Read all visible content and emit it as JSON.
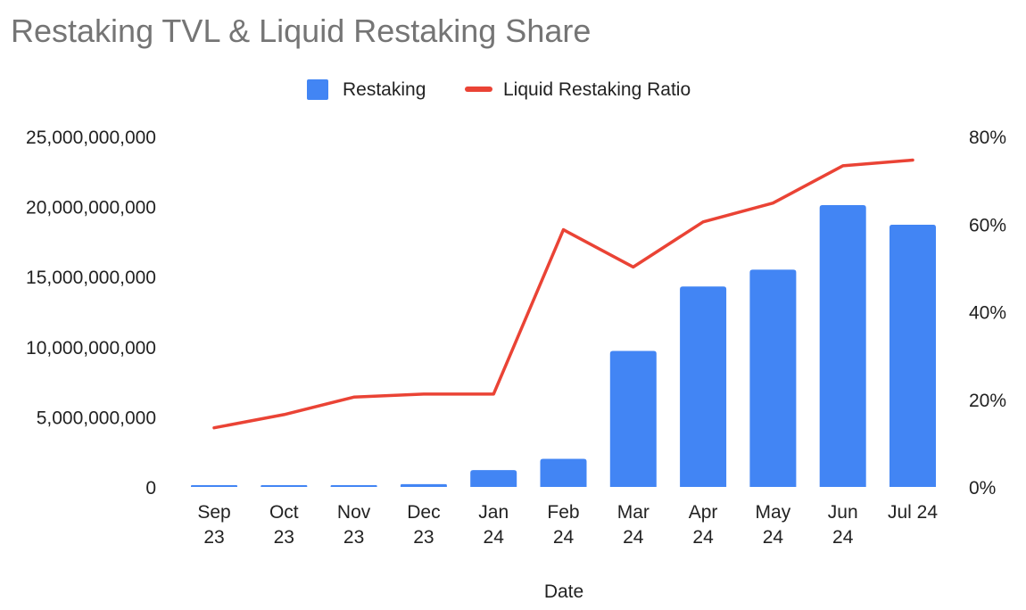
{
  "chart_data": {
    "type": "bar",
    "title": "Restaking TVL & Liquid Restaking Share",
    "xlabel": "Date",
    "ylabel": "",
    "y2label": "",
    "categories": [
      [
        "Sep",
        "23"
      ],
      [
        "Oct",
        "23"
      ],
      [
        "Nov",
        "23"
      ],
      [
        "Dec",
        "23"
      ],
      [
        "Jan",
        "24"
      ],
      [
        "Feb",
        "24"
      ],
      [
        "Mar",
        "24"
      ],
      [
        "Apr",
        "24"
      ],
      [
        "May",
        "24"
      ],
      [
        "Jun",
        "24"
      ],
      [
        "Jul 24"
      ]
    ],
    "ylim": [
      0,
      25000000000
    ],
    "y_ticks": [
      "0",
      "5,000,000,000",
      "10,000,000,000",
      "15,000,000,000",
      "20,000,000,000",
      "25,000,000,000"
    ],
    "y2lim": [
      0,
      80
    ],
    "y2_ticks": [
      "0%",
      "20%",
      "40%",
      "60%",
      "80%"
    ],
    "series": [
      {
        "name": "Restaking",
        "type": "bar",
        "axis": "left",
        "color": "#4285f4",
        "values": [
          100000000,
          100000000,
          100000000,
          200000000,
          1200000000,
          2000000000,
          9700000000,
          14300000000,
          15500000000,
          20100000000,
          18700000000
        ]
      },
      {
        "name": "Liquid Restaking Ratio",
        "type": "line",
        "axis": "right",
        "color": "#ea4335",
        "values": [
          13.5,
          16.5,
          20.5,
          21.2,
          21.2,
          58.7,
          50.2,
          60.5,
          64.8,
          73.3,
          74.6
        ]
      }
    ],
    "legend_position": "top",
    "grid": false
  }
}
